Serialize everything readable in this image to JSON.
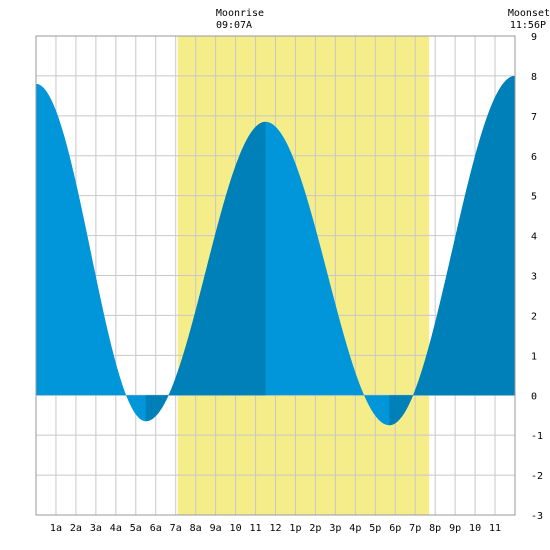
{
  "chart_data": {
    "type": "area",
    "title": "",
    "xlabel": "",
    "ylabel": "",
    "x_unit": "hour of day",
    "xlim": [
      0,
      24
    ],
    "ylim": [
      -3,
      9
    ],
    "yticks": [
      -3,
      -2,
      -1,
      0,
      1,
      2,
      3,
      4,
      5,
      6,
      7,
      8,
      9
    ],
    "xtick_labels": [
      "1a",
      "2a",
      "3a",
      "4a",
      "5a",
      "6a",
      "7a",
      "8a",
      "9a",
      "10",
      "11",
      "12",
      "1p",
      "2p",
      "3p",
      "4p",
      "5p",
      "6p",
      "7p",
      "8p",
      "9p",
      "10",
      "11"
    ],
    "grid": true,
    "daylight": {
      "start_hour": 7.1,
      "end_hour": 19.7,
      "color": "#f5ec8a"
    },
    "moon": {
      "rise_label": "Moonrise",
      "rise_time": "09:07A",
      "set_label": "Moonset",
      "set_time": "11:56P"
    },
    "extremes": [
      {
        "hour": 0.0,
        "height": 7.8
      },
      {
        "hour": 5.5,
        "height": -0.65
      },
      {
        "hour": 11.5,
        "height": 6.85
      },
      {
        "hour": 17.7,
        "height": -0.75
      },
      {
        "hour": 24.0,
        "height": 8.0
      }
    ],
    "shading": [
      {
        "from": 5.5,
        "to": 11.5,
        "phase": "rising"
      },
      {
        "from": 17.7,
        "to": 24.0,
        "phase": "rising"
      }
    ],
    "colors": {
      "falling": "#0096d9",
      "rising": "#0080b8",
      "grid": "#c8c8c8"
    }
  }
}
